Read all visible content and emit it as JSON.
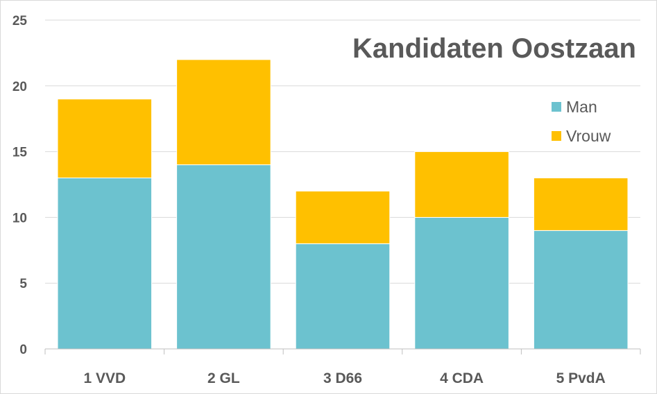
{
  "chart_data": {
    "type": "bar",
    "stacked": true,
    "title": "Kandidaten Oostzaan",
    "categories": [
      "1 VVD",
      "2 GL",
      "3 D66",
      "4 CDA",
      "5 PvdA"
    ],
    "series": [
      {
        "name": "Man",
        "values": [
          13,
          14,
          8,
          10,
          9
        ],
        "color": "#6CC2CF"
      },
      {
        "name": "Vrouw",
        "values": [
          6,
          8,
          4,
          5,
          4
        ],
        "color": "#FFC000"
      }
    ],
    "xlabel": "",
    "ylabel": "",
    "ylim": [
      0,
      25
    ],
    "yticks": [
      0,
      5,
      10,
      15,
      20,
      25
    ],
    "grid": true,
    "legend_position": "right"
  }
}
